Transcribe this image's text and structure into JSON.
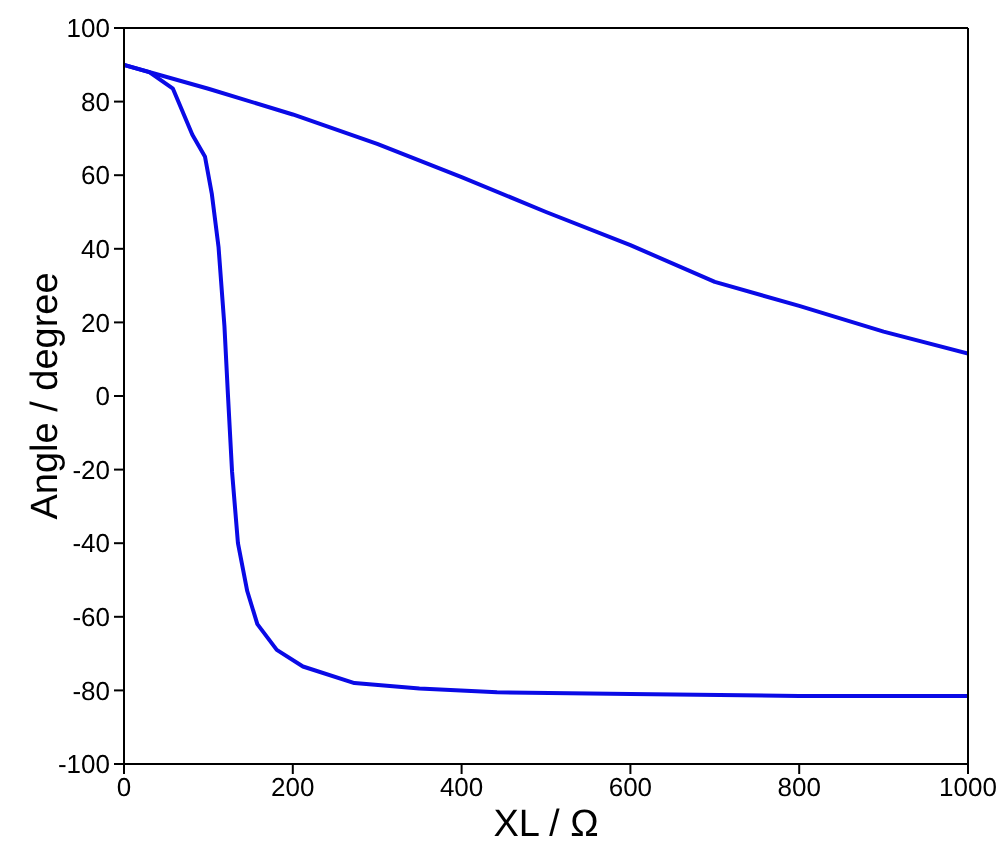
{
  "chart_data": {
    "type": "line",
    "xlabel": "XL / Ω",
    "ylabel": "Angle / degree",
    "xlim": [
      0,
      1000
    ],
    "ylim": [
      -100,
      100
    ],
    "xticks": [
      0,
      200,
      400,
      600,
      800,
      1000
    ],
    "yticks": [
      -100,
      -80,
      -60,
      -40,
      -20,
      0,
      20,
      40,
      60,
      80,
      100
    ],
    "grid": false,
    "marker": "none",
    "line_style": "solid",
    "series": [
      {
        "color": "#0a0ae6",
        "x": [
          0,
          100,
          200,
          300,
          400,
          500,
          600,
          700,
          800,
          900,
          1000
        ],
        "values": [
          90,
          83.5,
          76.5,
          68.5,
          59.5,
          50,
          41,
          31,
          24.5,
          17.5,
          11.5
        ]
      },
      {
        "color": "#0a0ae6",
        "x": [
          0,
          30,
          58,
          81,
          96,
          104,
          112,
          119,
          123,
          128,
          135,
          146,
          158,
          181,
          212,
          273,
          350,
          442,
          600,
          800,
          1000
        ],
        "values": [
          90,
          88,
          83.5,
          71,
          65,
          55,
          40.5,
          19,
          1,
          -20.5,
          -40,
          -53,
          -62,
          -69,
          -73.5,
          -78,
          -79.5,
          -80.5,
          -81,
          -81.5,
          -81.5
        ]
      }
    ]
  }
}
